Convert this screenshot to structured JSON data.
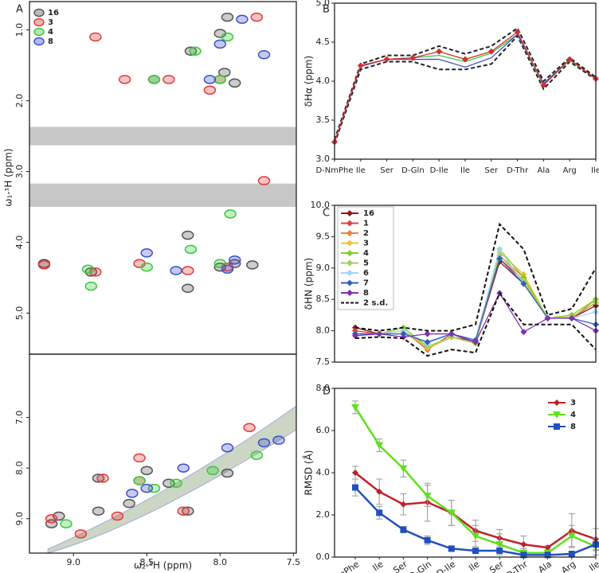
{
  "chart_data": [
    {
      "type": "scatter",
      "panel": "A",
      "ylabel": "ω₁-¹H (ppm)",
      "xlim": [
        9.3,
        7.48
      ],
      "ylim": [
        5.58,
        0.6
      ],
      "yticks": [
        {
          "value": 1,
          "label": "1.0"
        },
        {
          "value": 2,
          "label": "2.0"
        },
        {
          "value": 3,
          "label": "3.0"
        },
        {
          "value": 4,
          "label": "4.0"
        },
        {
          "value": 5,
          "label": "5.0"
        }
      ],
      "shaded_bands": [
        [
          2.37,
          2.63
        ],
        [
          3.17,
          3.5
        ]
      ],
      "series": [
        {
          "name": "16",
          "color": "#555555",
          "x": [
            8.2,
            8.0,
            7.97,
            8.45,
            7.9,
            8.22,
            9.2,
            8.88,
            8.22,
            7.9,
            8.0,
            7.78,
            7.95
          ],
          "y": [
            1.3,
            1.05,
            1.6,
            1.7,
            1.75,
            3.9,
            4.3,
            4.42,
            4.65,
            4.3,
            4.35,
            4.32,
            0.82
          ]
        },
        {
          "name": "3",
          "color": "#e03c3c",
          "x": [
            8.85,
            8.65,
            8.35,
            8.0,
            7.7,
            9.2,
            8.85,
            8.55,
            7.95,
            8.07,
            7.75,
            8.22
          ],
          "y": [
            1.1,
            1.7,
            1.7,
            1.7,
            3.13,
            4.32,
            4.42,
            4.3,
            4.35,
            1.85,
            0.82,
            4.4
          ]
        },
        {
          "name": "4",
          "color": "#3cc83c",
          "x": [
            8.17,
            7.95,
            8.45,
            8.0,
            7.93,
            8.9,
            8.5,
            8.0,
            8.88,
            8.2
          ],
          "y": [
            1.3,
            1.1,
            1.7,
            1.7,
            3.6,
            4.38,
            4.35,
            4.3,
            4.62,
            4.1
          ]
        },
        {
          "name": "8",
          "color": "#4050d0",
          "x": [
            7.85,
            7.7,
            8.0,
            8.5,
            8.07,
            7.95,
            7.9,
            8.3
          ],
          "y": [
            0.85,
            1.35,
            1.2,
            4.15,
            1.7,
            4.38,
            4.25,
            4.4
          ]
        }
      ]
    },
    {
      "type": "scatter",
      "xlabel": "ω₂-¹H (ppm)",
      "xlim": [
        9.3,
        7.48
      ],
      "ylim": [
        9.68,
        5.75
      ],
      "xticks": [
        {
          "value": 9,
          "label": "9.0"
        },
        {
          "value": 8.5,
          "label": "8.5"
        },
        {
          "value": 8,
          "label": "8.0"
        },
        {
          "value": 7.5,
          "label": "7.5"
        }
      ],
      "yticks": [
        {
          "value": 7,
          "label": "7.0"
        },
        {
          "value": 8,
          "label": "8.0"
        },
        {
          "value": 9,
          "label": "9.0"
        }
      ],
      "series": [
        {
          "color": "#555555",
          "x": [
            8.83,
            8.83,
            8.62,
            8.22,
            9.15,
            8.5,
            8.35,
            9.1,
            7.95
          ],
          "y": [
            8.2,
            8.85,
            8.7,
            8.85,
            9.1,
            8.05,
            8.3,
            8.95,
            8.1
          ]
        },
        {
          "color": "#e03c3c",
          "x": [
            8.8,
            8.55,
            8.25,
            9.15,
            7.8,
            8.55,
            8.95,
            8.7
          ],
          "y": [
            8.2,
            8.25,
            8.85,
            9.0,
            7.2,
            7.8,
            9.3,
            8.95
          ]
        },
        {
          "color": "#3cc83c",
          "x": [
            8.45,
            8.05,
            9.05,
            8.55,
            8.3,
            7.75
          ],
          "y": [
            8.4,
            8.05,
            9.1,
            8.25,
            8.3,
            7.75
          ]
        },
        {
          "color": "#4050d0",
          "x": [
            7.95,
            7.7,
            8.25,
            8.5,
            7.6,
            8.6
          ],
          "y": [
            7.6,
            7.5,
            8.0,
            8.4,
            7.45,
            8.5
          ]
        }
      ]
    },
    {
      "type": "line",
      "panel": "B",
      "ylabel": "δHα (ppm)",
      "ylim": [
        3.0,
        5.0
      ],
      "yticks": [
        {
          "value": 3,
          "label": "3.0"
        },
        {
          "value": 3.5,
          "label": "3.5"
        },
        {
          "value": 4,
          "label": "4.0"
        },
        {
          "value": 4.5,
          "label": "4.5"
        },
        {
          "value": 5,
          "label": "5.0"
        }
      ],
      "categories": [
        "D-NmPhe",
        "Ile",
        "Ser",
        "D-Gln",
        "D-Ile",
        "Ile",
        "Ser",
        "D-Thr",
        "Ala",
        "Arg",
        "Ile"
      ],
      "series": [
        {
          "color": "#222222",
          "dash": true,
          "values": [
            3.25,
            4.22,
            4.33,
            4.33,
            4.45,
            4.35,
            4.45,
            4.68,
            4.0,
            4.3,
            4.05
          ]
        },
        {
          "color": "#222222",
          "dash": true,
          "values": [
            3.2,
            4.15,
            4.25,
            4.25,
            4.15,
            4.15,
            4.22,
            4.58,
            3.9,
            4.25,
            4.02
          ]
        },
        {
          "color": "#3cc83c",
          "values": [
            3.22,
            4.2,
            4.28,
            4.3,
            4.33,
            4.25,
            4.36,
            4.6,
            3.95,
            4.27,
            4.03
          ]
        },
        {
          "color": "#4050d0",
          "values": [
            3.22,
            4.19,
            4.28,
            4.28,
            4.28,
            4.18,
            4.3,
            4.6,
            3.97,
            4.28,
            4.03
          ]
        },
        {
          "color": "#d03030",
          "marker": "diamond",
          "values": [
            3.22,
            4.2,
            4.28,
            4.3,
            4.38,
            4.28,
            4.38,
            4.63,
            3.95,
            4.28,
            4.03
          ]
        }
      ]
    },
    {
      "type": "line",
      "panel": "C",
      "ylabel": "δHN (ppm)",
      "ylim": [
        7.5,
        10.0
      ],
      "yticks": [
        {
          "value": 7.5,
          "label": "7.5"
        },
        {
          "value": 8,
          "label": "8.0"
        },
        {
          "value": 8.5,
          "label": "8.5"
        },
        {
          "value": 9,
          "label": "9.0"
        },
        {
          "value": 9.5,
          "label": "9.5"
        },
        {
          "value": 10,
          "label": "10.0"
        }
      ],
      "series": [
        {
          "name": "16",
          "color": "#8b1a1a",
          "marker": "diamond",
          "values": [
            8.05,
            7.95,
            8.0,
            7.72,
            7.9,
            7.82,
            9.1,
            8.75,
            8.2,
            8.2,
            8.4
          ]
        },
        {
          "name": "1",
          "color": "#e04040",
          "marker": "diamond",
          "values": [
            8.0,
            7.95,
            8.0,
            7.7,
            7.95,
            7.8,
            9.15,
            8.8,
            8.2,
            8.2,
            8.45
          ]
        },
        {
          "name": "2",
          "color": "#f08030",
          "marker": "diamond",
          "values": [
            7.95,
            7.95,
            8.0,
            7.72,
            7.9,
            7.8,
            9.2,
            8.85,
            8.2,
            8.2,
            8.5
          ]
        },
        {
          "name": "3",
          "color": "#f0c030",
          "marker": "diamond",
          "values": [
            7.95,
            7.95,
            8.0,
            7.72,
            7.9,
            7.8,
            9.25,
            8.9,
            8.2,
            8.25,
            8.5
          ]
        },
        {
          "name": "4",
          "color": "#80d020",
          "marker": "diamond",
          "values": [
            7.95,
            7.95,
            8.05,
            7.75,
            7.9,
            7.8,
            9.3,
            8.85,
            8.2,
            8.25,
            8.5
          ]
        },
        {
          "name": "5",
          "color": "#a0d060",
          "marker": "diamond",
          "values": [
            7.95,
            7.95,
            8.0,
            7.75,
            7.9,
            7.8,
            9.2,
            8.8,
            8.2,
            8.22,
            8.45
          ]
        },
        {
          "name": "6",
          "color": "#a0d8f0",
          "marker": "diamond",
          "values": [
            7.95,
            7.95,
            8.0,
            7.8,
            7.95,
            7.85,
            9.3,
            8.75,
            8.2,
            8.2,
            8.3
          ]
        },
        {
          "name": "7",
          "color": "#3060c0",
          "marker": "diamond",
          "values": [
            7.95,
            7.95,
            7.95,
            7.82,
            7.95,
            7.85,
            9.15,
            8.75,
            8.2,
            8.2,
            8.1
          ]
        },
        {
          "name": "8",
          "color": "#8030b0",
          "marker": "diamond",
          "values": [
            7.92,
            7.95,
            7.9,
            7.95,
            7.95,
            7.82,
            8.6,
            7.98,
            8.2,
            8.2,
            8.0
          ]
        },
        {
          "name": "2 s.d.",
          "color": "#111111",
          "dash": true,
          "values": [
            8.05,
            8.0,
            8.05,
            8.0,
            8.0,
            8.1,
            9.7,
            9.3,
            8.25,
            8.35,
            9.0
          ]
        },
        {
          "color": "#111111",
          "dash": true,
          "values": [
            7.88,
            7.9,
            7.88,
            7.6,
            7.7,
            7.65,
            8.6,
            8.1,
            8.1,
            8.1,
            7.7
          ]
        }
      ]
    },
    {
      "type": "line",
      "panel": "D",
      "ylabel": "RMSD (Å)",
      "ylim": [
        0,
        8
      ],
      "yticks": [
        {
          "value": 0,
          "label": "0.0"
        },
        {
          "value": 2,
          "label": "2.0"
        },
        {
          "value": 4,
          "label": "4.0"
        },
        {
          "value": 6,
          "label": "6.0"
        },
        {
          "value": 8,
          "label": "8.0"
        }
      ],
      "categories": [
        "D-NmPhe",
        "Ile",
        "Ser",
        "D-Gln",
        "D-Ile",
        "Ile",
        "Ser",
        "D-Thr",
        "Ala",
        "Arg",
        "Ile"
      ],
      "series": [
        {
          "name": "3",
          "color": "#c0202a",
          "marker": "diamond",
          "values": [
            4.0,
            3.1,
            2.5,
            2.6,
            2.1,
            1.25,
            0.9,
            0.6,
            0.45,
            1.25,
            0.85
          ],
          "err": [
            0.3,
            0.6,
            0.5,
            0.9,
            0.6,
            0.5,
            0.4,
            0.4,
            0.1,
            0.8,
            0.5
          ]
        },
        {
          "name": "4",
          "color": "#60e020",
          "marker": "triangle",
          "values": [
            7.1,
            5.3,
            4.2,
            2.9,
            2.1,
            1.0,
            0.6,
            0.2,
            0.2,
            1.0,
            0.5
          ],
          "err": [
            0.3,
            0.3,
            0.4,
            0.5,
            0.6,
            0.5,
            0.5,
            0.2,
            0.1,
            0.5,
            0.4
          ]
        },
        {
          "name": "8",
          "color": "#2050c0",
          "marker": "square",
          "values": [
            3.3,
            2.1,
            1.3,
            0.8,
            0.4,
            0.3,
            0.3,
            0.1,
            0.1,
            0.15,
            0.6
          ],
          "err": [
            0.4,
            0.3,
            0.15,
            0.2,
            0.1,
            0.1,
            0.1,
            0.05,
            0.05,
            0.1,
            0.3
          ]
        }
      ]
    }
  ]
}
